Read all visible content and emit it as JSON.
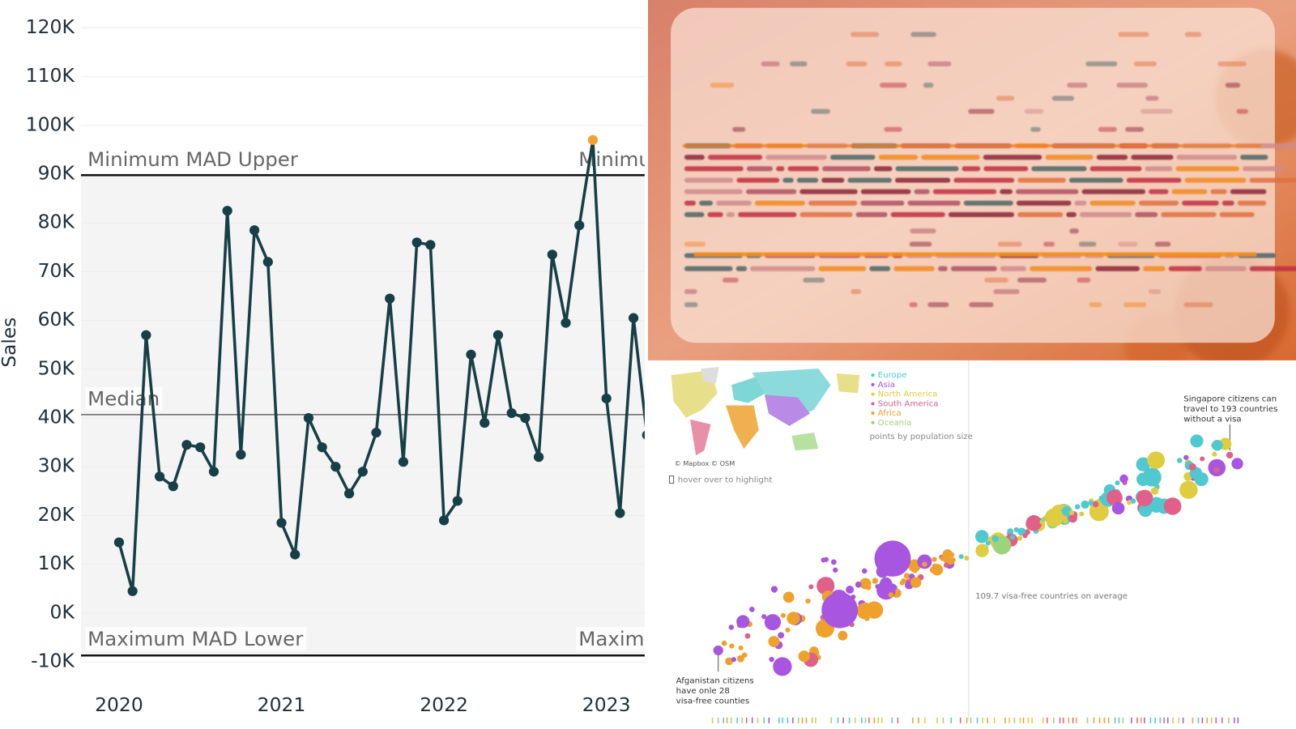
{
  "chart_data": {
    "type": "line",
    "y_label": "Sales",
    "categories": [
      "2020",
      null,
      null,
      null,
      null,
      null,
      null,
      null,
      null,
      null,
      null,
      null,
      "2021",
      null,
      null,
      null,
      null,
      null,
      null,
      null,
      null,
      null,
      null,
      null,
      "2022",
      null,
      null,
      null,
      null,
      null,
      null,
      null,
      null,
      null,
      null,
      null,
      "2023",
      null,
      null,
      null
    ],
    "values": [
      14500,
      4500,
      57000,
      28000,
      26000,
      34500,
      34000,
      29000,
      82500,
      32500,
      78500,
      72000,
      18500,
      12000,
      40000,
      34000,
      30000,
      24500,
      29000,
      37000,
      64500,
      31000,
      76000,
      75500,
      19000,
      23000,
      53000,
      39000,
      57000,
      41000,
      40000,
      32000,
      73500,
      59500,
      79500,
      97000,
      44000,
      20500,
      60500,
      36500
    ],
    "color": "#173f47",
    "highlight": {
      "index": 35,
      "color": "#f5a030"
    },
    "reference_lines": [
      {
        "label": "Minimum MAD Upper",
        "value": 89800
      },
      {
        "label": "Median",
        "value": 40700
      },
      {
        "label": "Maximum MAD Lower",
        "value": -8700
      }
    ],
    "band_color": "#f4f4f4",
    "ylim": [
      -10000,
      120000
    ],
    "yticks": [
      {
        "value": -10000,
        "label": "-10K"
      },
      {
        "value": 0,
        "label": "0K"
      },
      {
        "value": 10000,
        "label": "10K"
      },
      {
        "value": 20000,
        "label": "20K"
      },
      {
        "value": 30000,
        "label": "30K"
      },
      {
        "value": 40000,
        "label": "40K"
      },
      {
        "value": 50000,
        "label": "50K"
      },
      {
        "value": 60000,
        "label": "60K"
      },
      {
        "value": 70000,
        "label": "70K"
      },
      {
        "value": 80000,
        "label": "80K"
      },
      {
        "value": 90000,
        "label": "90K"
      },
      {
        "value": 100000,
        "label": "100K"
      },
      {
        "value": 110000,
        "label": "110K"
      },
      {
        "value": 120000,
        "label": "120K"
      }
    ],
    "grid": true
  },
  "visa_panel": {
    "legend": [
      {
        "name": "Europe",
        "color": "#4fc8d0"
      },
      {
        "name": "Asia",
        "color": "#a855e0"
      },
      {
        "name": "North America",
        "color": "#e0cc40"
      },
      {
        "name": "South America",
        "color": "#e0608a"
      },
      {
        "name": "Africa",
        "color": "#eea22c"
      },
      {
        "name": "Oceania",
        "color": "#9cd47c"
      }
    ],
    "legend_note": "points by population size",
    "map_credit": "© Mapbox © OSM",
    "hover_hint": "hover over to highlight",
    "top_annotation": [
      "Singapore citizens can",
      "travel to 193 countries",
      "without a visa"
    ],
    "average_label": "109.7 visa-free countries on average",
    "bottom_annotation": [
      "Afganistan citizens",
      "have onle 28",
      "visa-free counties"
    ]
  }
}
